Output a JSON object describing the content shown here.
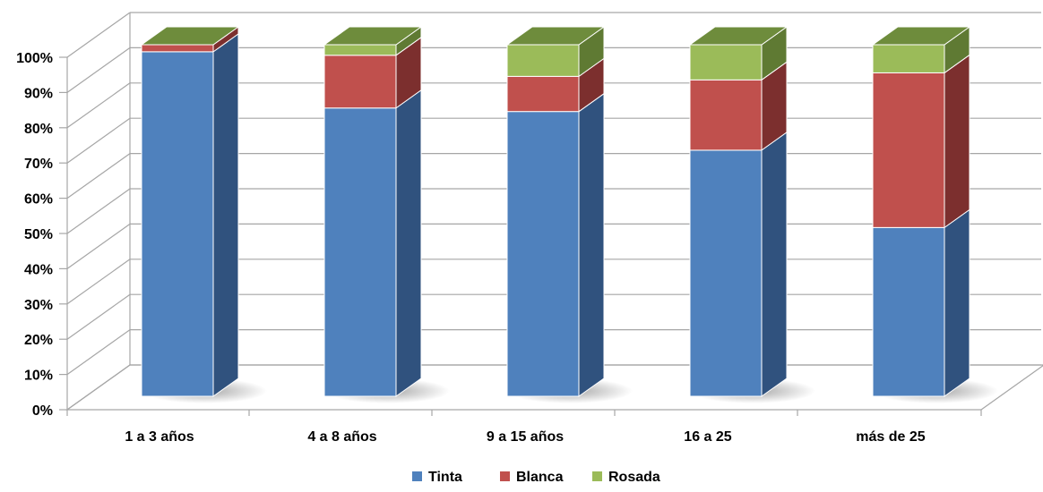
{
  "chart_data": {
    "type": "bar",
    "stacked": true,
    "percent_stacked": true,
    "three_d": true,
    "title": "",
    "xlabel": "",
    "ylabel": "",
    "ylim": [
      0,
      100
    ],
    "y_ticks": [
      "0%",
      "10%",
      "20%",
      "30%",
      "40%",
      "50%",
      "60%",
      "70%",
      "80%",
      "90%",
      "100%"
    ],
    "categories": [
      "1 a 3 años",
      "4 a 8 años",
      "9 a 15 años",
      "16 a 25",
      "más de 25"
    ],
    "series": [
      {
        "name": "Tinta",
        "values": [
          98,
          82,
          81,
          70,
          48
        ],
        "color": "#4f81bd",
        "side_color": "#30527e",
        "top_color": "#3d6699"
      },
      {
        "name": "Blanca",
        "values": [
          2,
          15,
          10,
          20,
          44
        ],
        "color": "#c0504d",
        "side_color": "#7c2f2e",
        "top_color": "#9b3a38"
      },
      {
        "name": "Rosada",
        "values": [
          0,
          3,
          9,
          10,
          8
        ],
        "color": "#9bbb59",
        "side_color": "#5f7a33",
        "top_color": "#6e8c3c"
      }
    ],
    "grid": true,
    "legend_position": "bottom"
  }
}
